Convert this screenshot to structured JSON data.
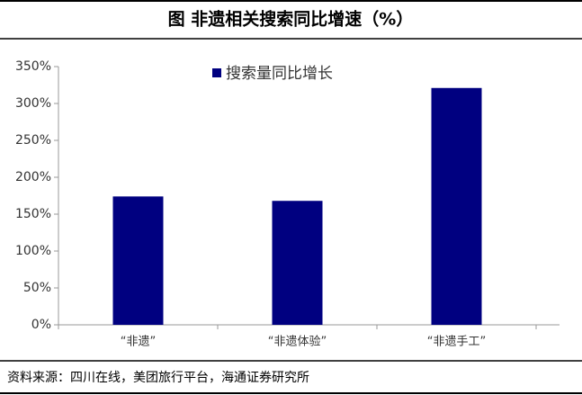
{
  "chart_data": {
    "type": "bar",
    "title": "图  非遗相关搜索同比增速（%）",
    "series": [
      {
        "name": "搜索量同比增长",
        "color": "#000080",
        "values": [
          174,
          168,
          321
        ]
      }
    ],
    "categories": [
      "“非遗”",
      "“非遗体验”",
      "“非遗手工”"
    ],
    "ylim": [
      0,
      350
    ],
    "yticks": [
      {
        "value": 0,
        "label": "0%"
      },
      {
        "value": 50,
        "label": "50%"
      },
      {
        "value": 100,
        "label": "100%"
      },
      {
        "value": 150,
        "label": "150%"
      },
      {
        "value": 200,
        "label": "200%"
      },
      {
        "value": 250,
        "label": "250%"
      },
      {
        "value": 300,
        "label": "300%"
      },
      {
        "value": 350,
        "label": "350%"
      }
    ],
    "legend": "top",
    "source": "资料来源：四川在线，美团旅行平台，海通证券研究所"
  }
}
